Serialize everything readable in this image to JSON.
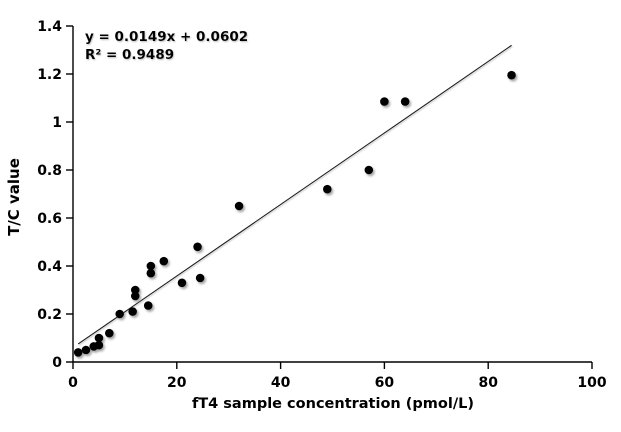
{
  "chart_data": {
    "type": "scatter",
    "title": "",
    "xlabel": "fT4 sample concentration (pmol/L)",
    "ylabel": "T/C value",
    "xlim": [
      0,
      100
    ],
    "ylim": [
      0,
      1.4
    ],
    "grid": false,
    "legend_position": "none",
    "xtick_values": [
      0,
      20,
      40,
      60,
      80,
      100
    ],
    "xtick_labels": [
      "0",
      "20",
      "40",
      "60",
      "80",
      "100"
    ],
    "ytick_values": [
      0,
      0.2,
      0.4,
      0.6,
      0.8,
      1,
      1.2,
      1.4
    ],
    "ytick_labels": [
      "0",
      "0.2",
      "0.4",
      "0.6",
      "0.8",
      "1",
      "1.2",
      "1.4"
    ],
    "points": [
      [
        1,
        0.04
      ],
      [
        2.5,
        0.05
      ],
      [
        4,
        0.065
      ],
      [
        5,
        0.07
      ],
      [
        5,
        0.1
      ],
      [
        7,
        0.12
      ],
      [
        9,
        0.2
      ],
      [
        11.5,
        0.21
      ],
      [
        12,
        0.275
      ],
      [
        12,
        0.3
      ],
      [
        14.5,
        0.235
      ],
      [
        15,
        0.37
      ],
      [
        15,
        0.4
      ],
      [
        17.5,
        0.42
      ],
      [
        21,
        0.33
      ],
      [
        24,
        0.48
      ],
      [
        24.5,
        0.35
      ],
      [
        32,
        0.65
      ],
      [
        49,
        0.72
      ],
      [
        57,
        0.8
      ],
      [
        60,
        1.085
      ],
      [
        64,
        1.085
      ],
      [
        84.5,
        1.195
      ]
    ],
    "trendline": {
      "slope": 0.0149,
      "intercept": 0.0602,
      "x_start": 1,
      "x_end": 84.5,
      "equation": "y = 0.0149x + 0.0602",
      "r_squared_label": "R² = 0.9489",
      "r_squared": 0.9489
    },
    "colors": {
      "point": "#000000",
      "line": "#1a1a1a",
      "axis": "#000000",
      "text": "#000000",
      "background": "#ffffff"
    }
  }
}
